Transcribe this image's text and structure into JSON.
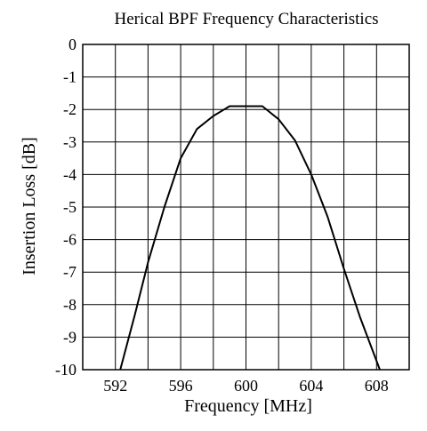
{
  "chart_data": {
    "type": "line",
    "title": "Herical BPF Frequency Characteristics",
    "xlabel": "Frequency [MHz]",
    "ylabel": "Insertion Loss [dB]",
    "xlim": [
      590,
      610
    ],
    "ylim": [
      -10,
      0
    ],
    "x_ticks": [
      592,
      596,
      600,
      604,
      608
    ],
    "x_grid_step": 2,
    "y_ticks": [
      0,
      -1,
      -2,
      -3,
      -4,
      -5,
      -6,
      -7,
      -8,
      -9,
      -10
    ],
    "grid": true,
    "legend": "none",
    "line_color": "#000000",
    "series": [
      {
        "x": [
          592.3,
          593.2,
          594.0,
          595.0,
          596.0,
          597.0,
          598.0,
          599.0,
          600.0,
          601.0,
          602.0,
          603.0,
          604.0,
          605.0,
          606.0,
          607.0,
          608.2
        ],
        "y": [
          -10.0,
          -8.3,
          -6.7,
          -5.0,
          -3.5,
          -2.6,
          -2.2,
          -1.9,
          -1.9,
          -1.9,
          -2.3,
          -2.95,
          -4.0,
          -5.3,
          -6.9,
          -8.4,
          -10.0
        ]
      }
    ]
  }
}
